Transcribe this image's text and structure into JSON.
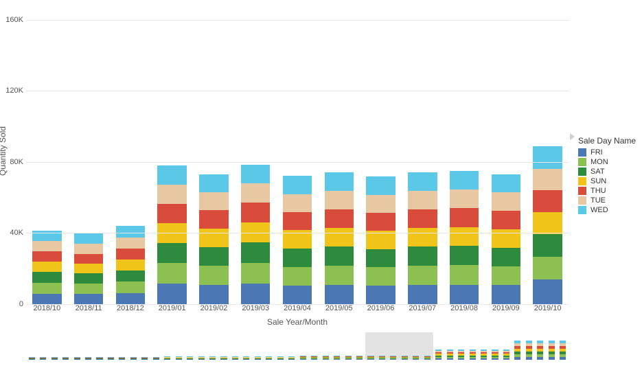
{
  "chart": {
    "type": "stacked-bar",
    "y_label": "Quantity Sold",
    "x_label": "Sale Year/Month",
    "y_axis": {
      "min": 0,
      "max": 168000,
      "ticks": [
        0,
        40000,
        80000,
        120000,
        160000
      ],
      "tick_labels": [
        "0",
        "40K",
        "80K",
        "120K",
        "160K"
      ]
    },
    "categories": [
      "2018/10",
      "2018/11",
      "2018/12",
      "2019/01",
      "2019/02",
      "2019/03",
      "2019/04",
      "2019/05",
      "2019/06",
      "2019/07",
      "2019/08",
      "2019/09",
      "2019/10"
    ],
    "series_order": [
      "FRI",
      "MON",
      "SAT",
      "SUN",
      "THU",
      "TUE",
      "WED"
    ],
    "series_colors": {
      "FRI": "#4b78b5",
      "MON": "#8cc152",
      "SAT": "#2e8b3d",
      "SUN": "#f0c419",
      "THU": "#d94b3a",
      "TUE": "#e7c8a3",
      "WED": "#5cc8e8"
    },
    "values": {
      "2018/10": {
        "FRI": 5800,
        "MON": 6200,
        "SAT": 6000,
        "SUN": 5900,
        "THU": 5700,
        "TUE": 5800,
        "WED": 5900
      },
      "2018/11": {
        "FRI": 5700,
        "MON": 5900,
        "SAT": 5700,
        "SUN": 5600,
        "THU": 5500,
        "TUE": 5600,
        "WED": 5700
      },
      "2018/12": {
        "FRI": 6300,
        "MON": 6400,
        "SAT": 6300,
        "SUN": 6200,
        "THU": 6100,
        "TUE": 6200,
        "WED": 6500
      },
      "2019/01": {
        "FRI": 11500,
        "MON": 11500,
        "SAT": 11300,
        "SUN": 11200,
        "THU": 11000,
        "TUE": 10800,
        "WED": 10700
      },
      "2019/02": {
        "FRI": 10800,
        "MON": 10700,
        "SAT": 10600,
        "SUN": 10500,
        "THU": 10300,
        "TUE": 10200,
        "WED": 10100
      },
      "2019/03": {
        "FRI": 11700,
        "MON": 11500,
        "SAT": 11400,
        "SUN": 11300,
        "THU": 11100,
        "TUE": 10900,
        "WED": 10700
      },
      "2019/04": {
        "FRI": 10500,
        "MON": 10500,
        "SAT": 10400,
        "SUN": 10300,
        "THU": 10200,
        "TUE": 10100,
        "WED": 10200
      },
      "2019/05": {
        "FRI": 10900,
        "MON": 10700,
        "SAT": 10700,
        "SUN": 10600,
        "THU": 10500,
        "TUE": 10300,
        "WED": 10300
      },
      "2019/06": {
        "FRI": 10400,
        "MON": 10400,
        "SAT": 10300,
        "SUN": 10200,
        "THU": 10100,
        "TUE": 10100,
        "WED": 10200
      },
      "2019/07": {
        "FRI": 10800,
        "MON": 10800,
        "SAT": 10700,
        "SUN": 10500,
        "THU": 10400,
        "TUE": 10400,
        "WED": 10400
      },
      "2019/08": {
        "FRI": 11000,
        "MON": 10900,
        "SAT": 10800,
        "SUN": 10700,
        "THU": 10600,
        "TUE": 10500,
        "WED": 10500
      },
      "2019/09": {
        "FRI": 10700,
        "MON": 10600,
        "SAT": 10500,
        "SUN": 10400,
        "THU": 10300,
        "TUE": 10300,
        "WED": 10400
      },
      "2019/10": {
        "FRI": 14000,
        "MON": 12800,
        "SAT": 12600,
        "SUN": 12400,
        "THU": 12200,
        "TUE": 12000,
        "WED": 13000
      }
    },
    "bar_width_ratio": 0.7,
    "background_color": "#ffffff",
    "gridline_color": "#e8e8e8",
    "axis_font_size": 11,
    "label_font_size": 12,
    "legend": {
      "title": "Sale Day Name",
      "items": [
        "FRI",
        "MON",
        "SAT",
        "SUN",
        "THU",
        "TUE",
        "WED"
      ],
      "position": "right"
    }
  },
  "overview": {
    "months": 48,
    "brush_start_index": 30,
    "brush_end_index": 36,
    "segments": [
      {
        "count": 12,
        "scale": 0.1
      },
      {
        "count": 12,
        "scale": 0.12
      },
      {
        "count": 12,
        "scale": 0.16
      },
      {
        "count": 7,
        "scale": 0.38
      },
      {
        "count": 5,
        "scale": 0.7
      }
    ],
    "brush_color": "#d9d9d9"
  }
}
